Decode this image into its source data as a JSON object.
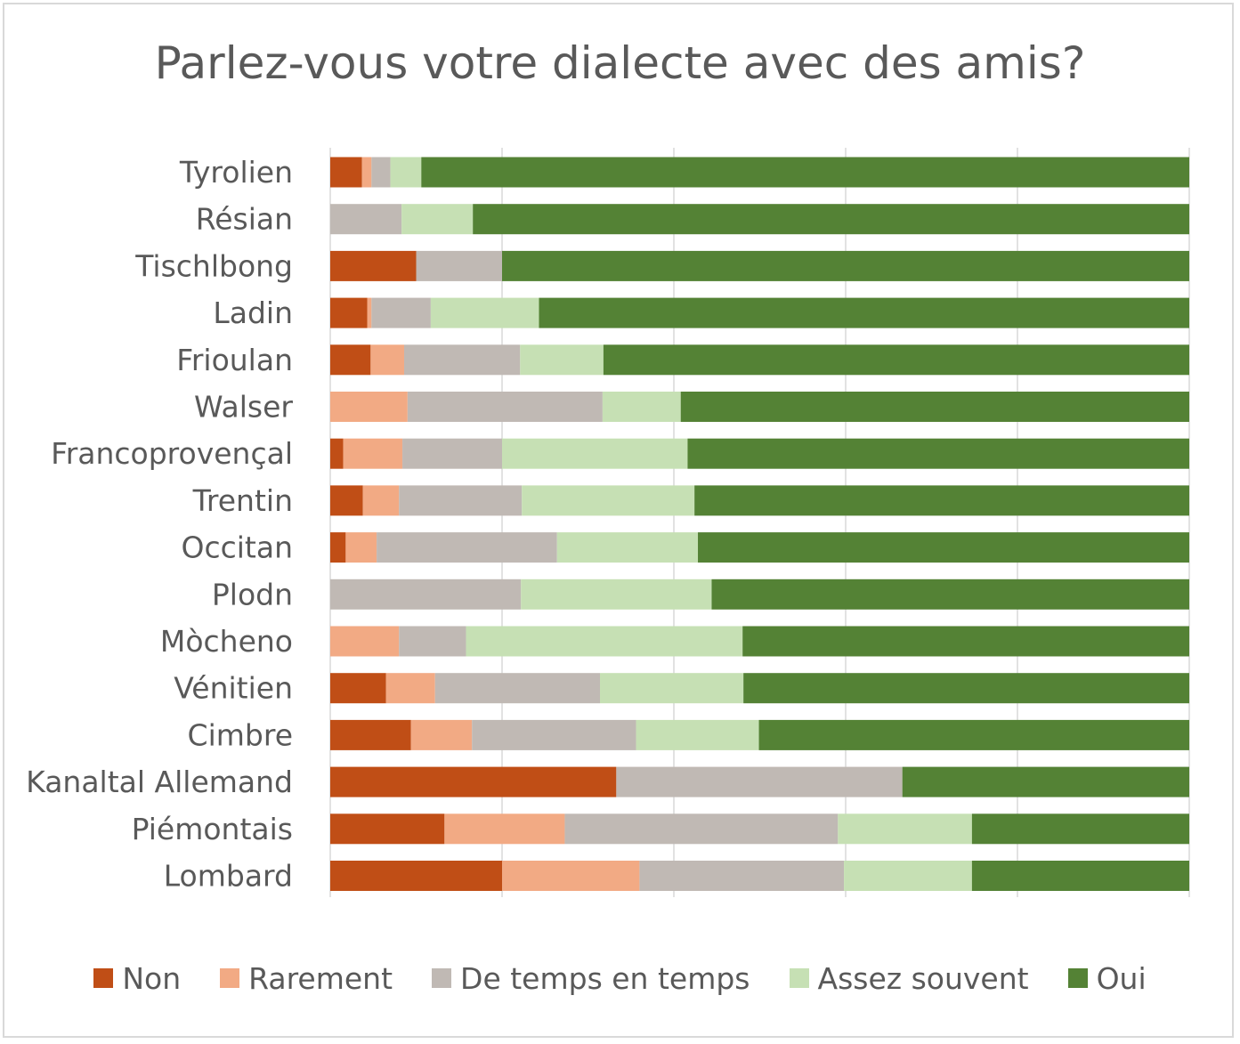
{
  "chart_data": {
    "type": "bar",
    "orientation": "horizontal",
    "stacked": true,
    "percent_stacked": true,
    "title": "Parlez-vous votre dialecte avec des amis?",
    "xlabel": "",
    "ylabel": "",
    "xlim": [
      0,
      100
    ],
    "grid": true,
    "legend_position": "bottom",
    "categories": [
      "Tyrolien",
      "Résian",
      "Tischlbong",
      "Ladin",
      "Frioulan",
      "Walser",
      "Francoprovençal",
      "Trentin",
      "Occitan",
      "Plodn",
      "Mòcheno",
      "Vénitien",
      "Cimbre",
      "Kanaltal Allemand",
      "Piémontais",
      "Lombard"
    ],
    "series": [
      {
        "name": "Non",
        "color": "#c04e16",
        "values": [
          3.7,
          0,
          10,
          4.3,
          4.7,
          0,
          1.5,
          3.8,
          1.8,
          0,
          0,
          6.5,
          9.4,
          33.3,
          13.3,
          20
        ]
      },
      {
        "name": "Rarement",
        "color": "#f2aa84",
        "values": [
          1.1,
          0,
          0,
          0.5,
          3.9,
          9,
          6.9,
          4.2,
          3.6,
          0,
          8,
          5.7,
          7.1,
          0,
          14,
          16
        ]
      },
      {
        "name": "De temps en temps",
        "color": "#c0b9b4",
        "values": [
          2.2,
          8.3,
          10,
          6.9,
          13.5,
          22.7,
          11.6,
          14.3,
          21,
          22.2,
          7.8,
          19.2,
          19.1,
          33.3,
          31.8,
          23.8
        ]
      },
      {
        "name": "Assez souvent",
        "color": "#c6e0b4",
        "values": [
          3.6,
          8.3,
          0,
          12.6,
          9.7,
          9.1,
          21.6,
          20.1,
          16.4,
          22.2,
          32.2,
          16.7,
          14.3,
          0,
          15.6,
          14.9
        ]
      },
      {
        "name": "Oui",
        "color": "#548235",
        "values": [
          89.4,
          83.4,
          80,
          75.7,
          68.2,
          59.2,
          58.4,
          57.6,
          57.2,
          55.6,
          52,
          51.9,
          50.1,
          33.4,
          25.3,
          25.3
        ]
      }
    ]
  }
}
